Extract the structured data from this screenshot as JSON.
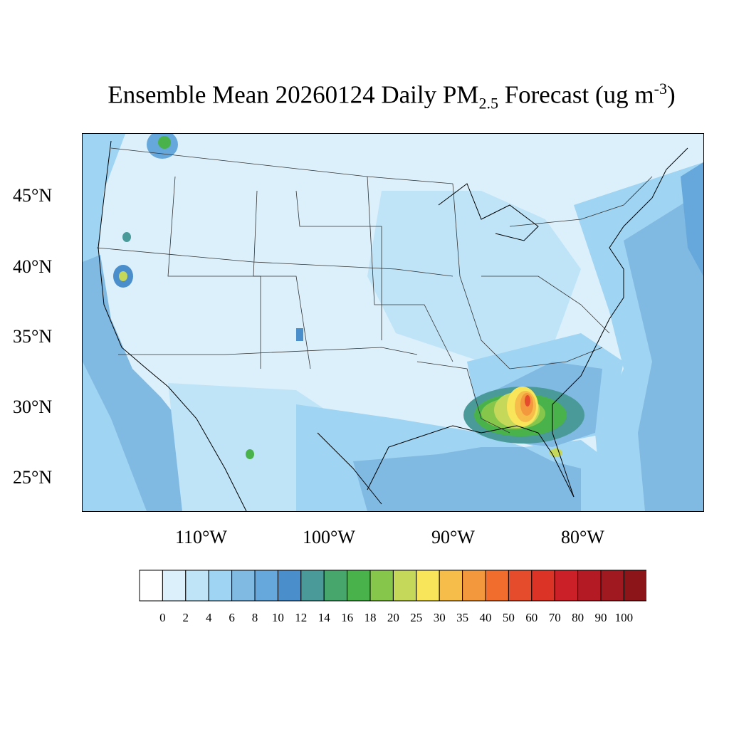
{
  "title": {
    "main": "Ensemble Mean 20260124 Daily PM",
    "sub": "2.5",
    "after": " Forecast (ug m",
    "sup": "-3",
    "close": ")"
  },
  "lat_labels": [
    "45°N",
    "40°N",
    "35°N",
    "30°N",
    "25°N"
  ],
  "lon_labels": [
    "110°W",
    "100°W",
    "90°W",
    "80°W"
  ],
  "colorbar": {
    "levels": [
      "0",
      "2",
      "4",
      "6",
      "8",
      "10",
      "12",
      "14",
      "16",
      "18",
      "20",
      "25",
      "30",
      "35",
      "40",
      "50",
      "60",
      "70",
      "80",
      "90",
      "100"
    ],
    "colors": [
      "#ffffff",
      "#dcf0fb",
      "#bfe4f7",
      "#9fd4f3",
      "#80b9e2",
      "#66a8dc",
      "#4a8ecb",
      "#4a9a9a",
      "#47a66b",
      "#49b24a",
      "#86c64a",
      "#c5d85a",
      "#f8e55a",
      "#f6bd4a",
      "#f4983d",
      "#f06d2e",
      "#e54c2c",
      "#dc3327",
      "#cc2028",
      "#b41a23",
      "#a01920",
      "#8b1519"
    ]
  },
  "colors": {
    "background_air": "#dcf0fb",
    "border_lines": "#333333"
  }
}
